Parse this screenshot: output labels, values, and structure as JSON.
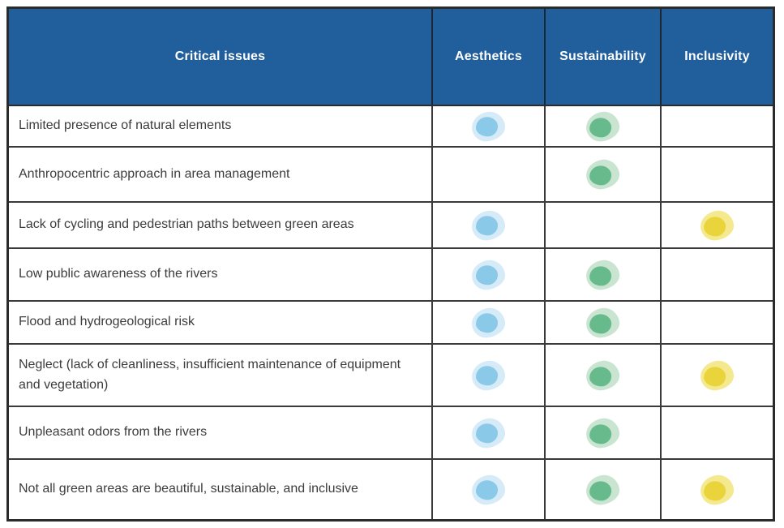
{
  "table": {
    "columns": [
      {
        "label": "Critical issues"
      },
      {
        "label": "Aesthetics"
      },
      {
        "label": "Sustainability"
      },
      {
        "label": "Inclusivity"
      }
    ],
    "rows": [
      {
        "issue": "Limited presence of natural elements",
        "aesthetics": true,
        "sustainability": true,
        "inclusivity": false
      },
      {
        "issue": "Anthropocentric approach in area management",
        "aesthetics": false,
        "sustainability": true,
        "inclusivity": false
      },
      {
        "issue": "Lack of cycling and pedestrian paths between green areas",
        "aesthetics": true,
        "sustainability": false,
        "inclusivity": true
      },
      {
        "issue": "Low public awareness of the rivers",
        "aesthetics": true,
        "sustainability": true,
        "inclusivity": false
      },
      {
        "issue": "Flood and hydrogeological risk",
        "aesthetics": true,
        "sustainability": true,
        "inclusivity": false
      },
      {
        "issue": "Neglect (lack of cleanliness, insufficient maintenance of equipment and vegetation)",
        "aesthetics": true,
        "sustainability": true,
        "inclusivity": true
      },
      {
        "issue": "Unpleasant odors from the rivers",
        "aesthetics": true,
        "sustainability": true,
        "inclusivity": false
      },
      {
        "issue": "Not all green areas are beautiful, sustainable, and inclusive",
        "aesthetics": true,
        "sustainability": true,
        "inclusivity": true
      }
    ],
    "colors": {
      "header_background": "#215E9C",
      "header_text": "#FFFFFF",
      "aesthetics_dot": "#8BC9E9",
      "aesthetics_halo": "#D5EBF8",
      "sustainability_dot": "#67BA8B",
      "sustainability_halo": "#C9E5D1",
      "inclusivity_dot": "#E9D43C",
      "inclusivity_halo": "#F5E98F",
      "grid_line": "#3A3A3A"
    }
  }
}
